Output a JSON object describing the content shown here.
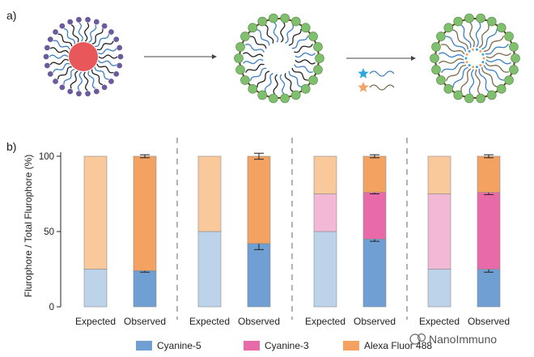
{
  "panel_a_label": "a)",
  "panel_b_label": "b)",
  "watermark": "NanoImmuno",
  "colors": {
    "cy5_light": "#bcd3ea",
    "cy5_dark": "#6f9fd3",
    "cy3_light": "#f3b8d6",
    "cy3_dark": "#e96aa8",
    "af488_light": "#f9c99c",
    "af488_dark": "#f3a262",
    "core": "#e8575a",
    "head": "#6b5b9c",
    "lipid_green": "#7fbf6e",
    "star_blue": "#2fa6e0",
    "star_orange": "#f3a262"
  },
  "diagram": {
    "steps": [
      "micelle",
      "shell",
      "loaded-shell"
    ],
    "reagents": [
      "blue-star-strand",
      "orange-star-strand"
    ]
  },
  "chart_data": {
    "type": "bar",
    "stacked": true,
    "ylabel": "Flurophore / Total Flurophore (%)",
    "ylim": [
      0,
      100
    ],
    "yticks": [
      0,
      50,
      100
    ],
    "categories": [
      "Expected",
      "Observed",
      "Expected",
      "Observed",
      "Expected",
      "Observed",
      "Expected",
      "Observed"
    ],
    "groups": [
      {
        "bars": [
          {
            "label": "Expected",
            "cy5": 25,
            "cy3": 0,
            "af488": 75
          },
          {
            "label": "Observed",
            "cy5": 24,
            "cy3": 0,
            "af488": 76,
            "err": [
              1,
              0,
              1
            ]
          }
        ]
      },
      {
        "bars": [
          {
            "label": "Expected",
            "cy5": 50,
            "cy3": 0,
            "af488": 50
          },
          {
            "label": "Observed",
            "cy5": 42,
            "cy3": 0,
            "af488": 58,
            "err": [
              4,
              0,
              2
            ]
          }
        ]
      },
      {
        "bars": [
          {
            "label": "Expected",
            "cy5": 50,
            "cy3": 25,
            "af488": 25
          },
          {
            "label": "Observed",
            "cy5": 45,
            "cy3": 31,
            "af488": 24,
            "err": [
              1.5,
              1,
              1
            ]
          }
        ]
      },
      {
        "bars": [
          {
            "label": "Expected",
            "cy5": 25,
            "cy3": 50,
            "af488": 25
          },
          {
            "label": "Observed",
            "cy5": 25,
            "cy3": 51,
            "af488": 24,
            "err": [
              2,
              1.5,
              1
            ]
          }
        ]
      }
    ],
    "legend": [
      {
        "key": "cy5",
        "name": "Cyanine-5"
      },
      {
        "key": "cy3",
        "name": "Cyanine-3"
      },
      {
        "key": "af488",
        "name": "Alexa Fluor 488"
      }
    ],
    "legend_position": "bottom",
    "grid": false
  }
}
